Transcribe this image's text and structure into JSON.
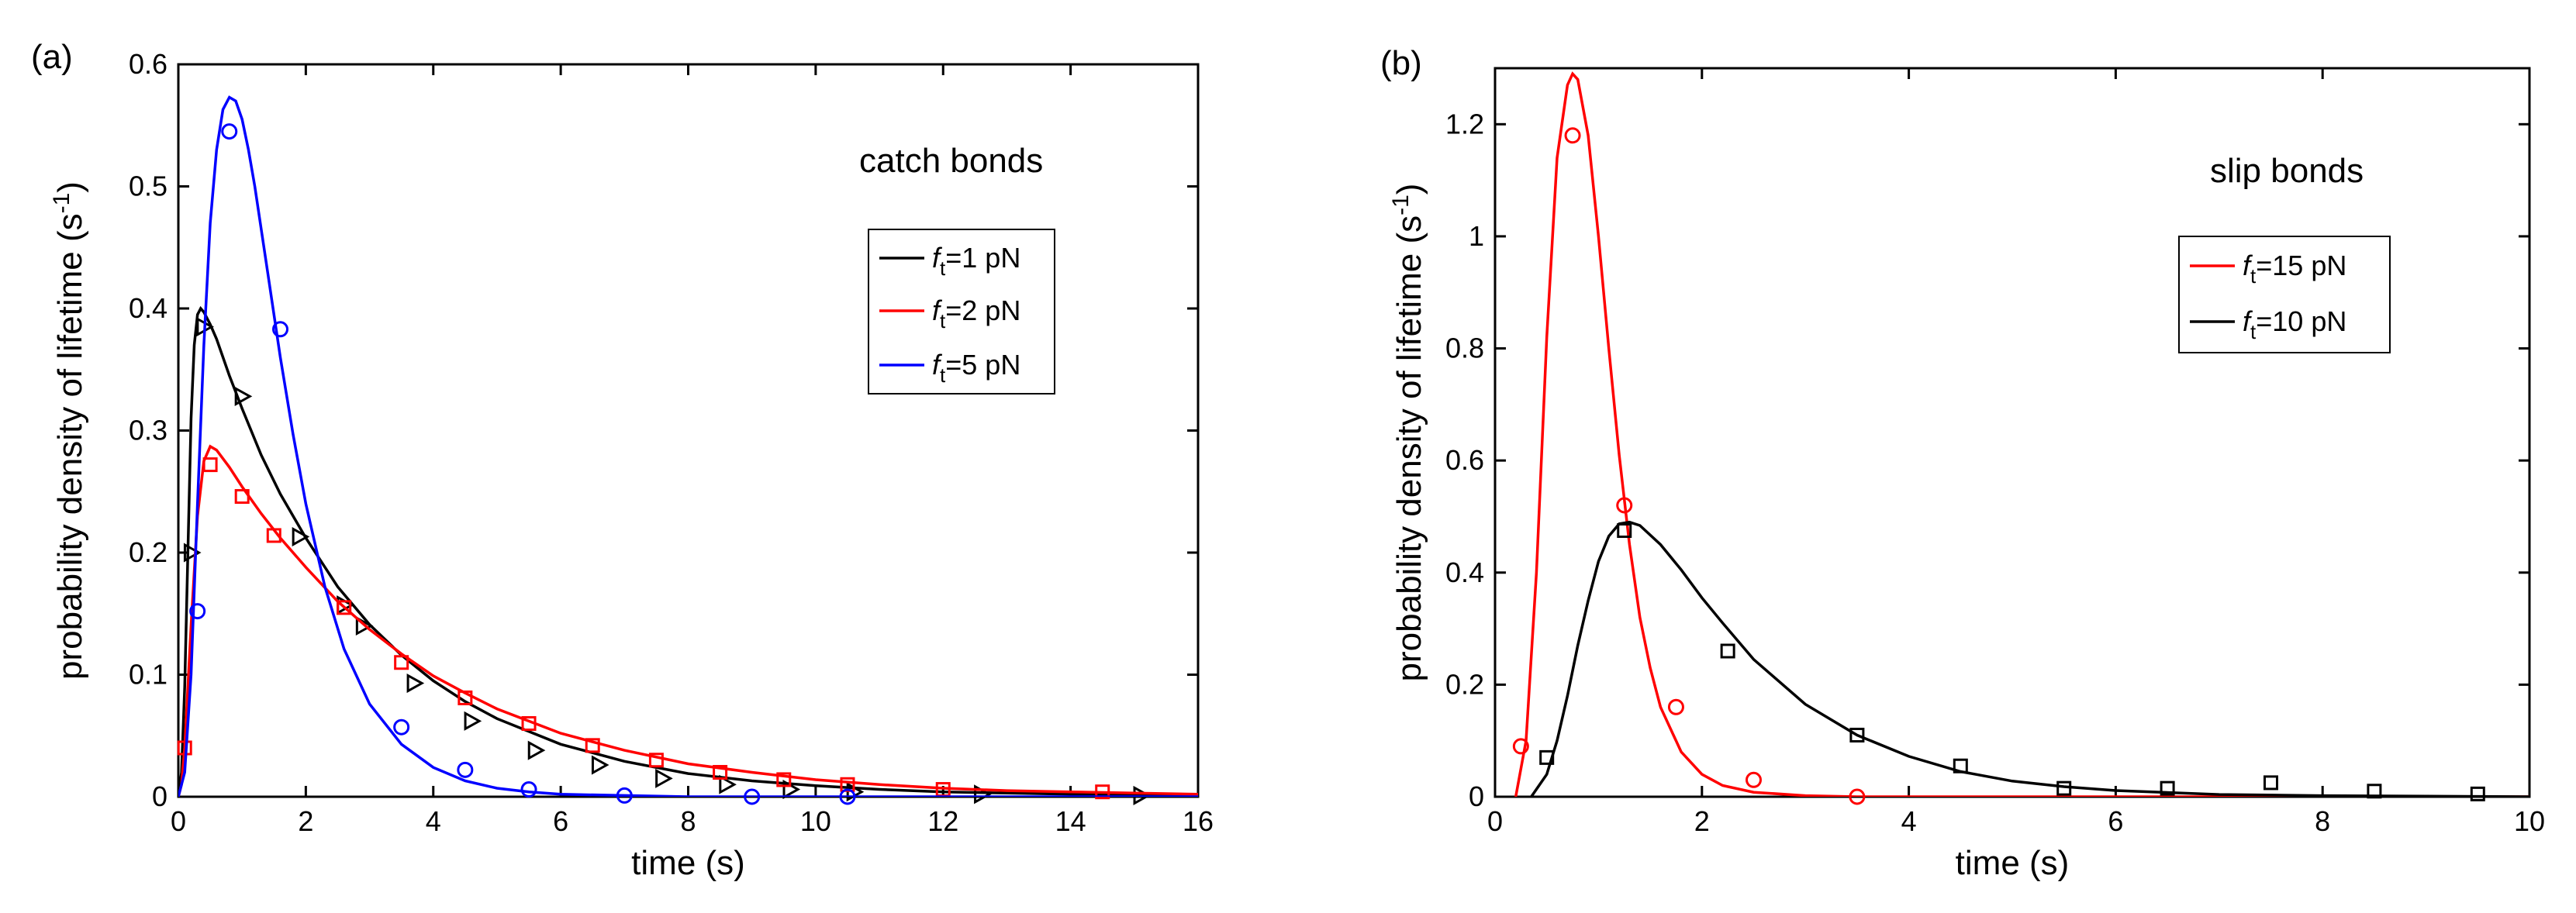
{
  "chart_data": [
    {
      "type": "line",
      "panel_label": "(a)",
      "annotation": "catch bonds",
      "xlabel": "time (s)",
      "ylabel": "probability density of lifetime (s",
      "ylabel_sup": "-1",
      "ylabel_close": ")",
      "xlim": [
        0,
        16
      ],
      "ylim": [
        0,
        0.6
      ],
      "xticks": [
        0,
        2,
        4,
        6,
        8,
        10,
        12,
        14,
        16
      ],
      "yticks": [
        0,
        0.1,
        0.2,
        0.3,
        0.4,
        0.5,
        0.6
      ],
      "xtick_labels": [
        "0",
        "2",
        "4",
        "6",
        "8",
        "10",
        "12",
        "14",
        "16"
      ],
      "ytick_labels": [
        "0",
        "0.1",
        "0.2",
        "0.3",
        "0.4",
        "0.5",
        "0.6"
      ],
      "legend_position": "upper-right",
      "series": [
        {
          "name": "f_t=1 pN",
          "legend_prefix": "f",
          "legend_sub": "t",
          "legend_suffix": "=1 pN",
          "color": "#000000",
          "marker": "triangle-right",
          "curve_x": [
            0,
            0.05,
            0.1,
            0.15,
            0.2,
            0.25,
            0.3,
            0.35,
            0.4,
            0.5,
            0.6,
            0.8,
            1.0,
            1.3,
            1.6,
            2.0,
            2.5,
            3.0,
            3.5,
            4.0,
            4.5,
            5.0,
            6.0,
            7.0,
            8.0,
            9.0,
            10,
            11,
            12,
            13,
            14,
            15,
            16
          ],
          "curve_y": [
            0,
            0.02,
            0.09,
            0.2,
            0.31,
            0.37,
            0.395,
            0.4,
            0.397,
            0.387,
            0.375,
            0.345,
            0.318,
            0.28,
            0.248,
            0.212,
            0.172,
            0.141,
            0.116,
            0.095,
            0.078,
            0.064,
            0.043,
            0.029,
            0.019,
            0.013,
            0.009,
            0.006,
            0.004,
            0.003,
            0.002,
            0.001,
            0.001
          ],
          "points_x": [
            0.2,
            0.4,
            1.0,
            1.9,
            2.6,
            2.9,
            3.7,
            4.6,
            5.6,
            6.6,
            7.6,
            8.6,
            9.6,
            10.6,
            12.6,
            15.1
          ],
          "points_y": [
            0.2,
            0.385,
            0.328,
            0.213,
            0.157,
            0.14,
            0.093,
            0.062,
            0.038,
            0.026,
            0.015,
            0.01,
            0.006,
            0.004,
            0.002,
            0.001
          ]
        },
        {
          "name": "f_t=2 pN",
          "legend_prefix": "f",
          "legend_sub": "t",
          "legend_suffix": "=2 pN",
          "color": "#ff0000",
          "marker": "square",
          "curve_x": [
            0,
            0.05,
            0.1,
            0.2,
            0.3,
            0.4,
            0.5,
            0.6,
            0.8,
            1.0,
            1.3,
            1.6,
            2.0,
            2.5,
            3.0,
            3.5,
            4.0,
            4.5,
            5.0,
            6.0,
            7.0,
            8.0,
            9.0,
            10,
            11,
            12,
            13,
            14,
            15,
            16
          ],
          "curve_y": [
            0,
            0.01,
            0.04,
            0.14,
            0.23,
            0.275,
            0.287,
            0.284,
            0.27,
            0.254,
            0.232,
            0.212,
            0.188,
            0.16,
            0.137,
            0.117,
            0.099,
            0.085,
            0.072,
            0.052,
            0.038,
            0.027,
            0.02,
            0.014,
            0.01,
            0.007,
            0.005,
            0.004,
            0.003,
            0.002
          ],
          "points_x": [
            0.1,
            0.5,
            1.0,
            1.5,
            2.6,
            3.5,
            4.5,
            5.5,
            6.5,
            7.5,
            8.5,
            9.5,
            10.5,
            12.0,
            14.5
          ],
          "points_y": [
            0.04,
            0.272,
            0.246,
            0.214,
            0.155,
            0.11,
            0.081,
            0.06,
            0.042,
            0.03,
            0.02,
            0.014,
            0.01,
            0.006,
            0.004
          ]
        },
        {
          "name": "f_t=5 pN",
          "legend_prefix": "f",
          "legend_sub": "t",
          "legend_suffix": "=5 pN",
          "color": "#0000ff",
          "marker": "circle",
          "curve_x": [
            0,
            0.1,
            0.2,
            0.3,
            0.4,
            0.5,
            0.6,
            0.7,
            0.8,
            0.9,
            1.0,
            1.1,
            1.2,
            1.4,
            1.6,
            1.8,
            2.0,
            2.3,
            2.6,
            3.0,
            3.5,
            4.0,
            4.5,
            5.0,
            5.5,
            6.0,
            7.0,
            8.0,
            9.0,
            10,
            16
          ],
          "curve_y": [
            0,
            0.02,
            0.1,
            0.24,
            0.37,
            0.47,
            0.53,
            0.563,
            0.573,
            0.57,
            0.555,
            0.53,
            0.5,
            0.43,
            0.36,
            0.297,
            0.24,
            0.172,
            0.121,
            0.076,
            0.043,
            0.024,
            0.013,
            0.007,
            0.004,
            0.002,
            0.001,
            0.0,
            0.0,
            0.0,
            0.0
          ],
          "points_x": [
            0.3,
            0.8,
            1.6,
            3.5,
            4.5,
            5.5,
            7.0,
            9.0,
            10.5
          ],
          "points_y": [
            0.152,
            0.545,
            0.383,
            0.057,
            0.022,
            0.006,
            0.001,
            0.0,
            0.0
          ]
        }
      ]
    },
    {
      "type": "line",
      "panel_label": "(b)",
      "annotation": "slip bonds",
      "xlabel": "time (s)",
      "ylabel": "probability density of lifetime (s",
      "ylabel_sup": "-1",
      "ylabel_close": ")",
      "xlim": [
        0,
        10
      ],
      "ylim": [
        0,
        1.3
      ],
      "xticks": [
        0,
        2,
        4,
        6,
        8,
        10
      ],
      "yticks": [
        0,
        0.2,
        0.4,
        0.6,
        0.8,
        1,
        1.2
      ],
      "xtick_labels": [
        "0",
        "2",
        "4",
        "6",
        "8",
        "10"
      ],
      "ytick_labels": [
        "0",
        "0.2",
        "0.4",
        "0.6",
        "0.8",
        "1",
        "1.2"
      ],
      "legend_position": "upper-right",
      "series": [
        {
          "name": "f_t=15 pN",
          "legend_prefix": "f",
          "legend_sub": "t",
          "legend_suffix": "=15 pN",
          "color": "#ff0000",
          "marker": "circle",
          "curve_x": [
            0.2,
            0.3,
            0.4,
            0.5,
            0.6,
            0.7,
            0.75,
            0.8,
            0.9,
            1.0,
            1.1,
            1.2,
            1.3,
            1.4,
            1.5,
            1.6,
            1.8,
            2.0,
            2.2,
            2.5,
            3.0,
            3.5,
            4.0,
            5.0,
            10
          ],
          "curve_y": [
            0.0,
            0.1,
            0.4,
            0.82,
            1.14,
            1.27,
            1.29,
            1.28,
            1.18,
            1.0,
            0.8,
            0.61,
            0.45,
            0.32,
            0.23,
            0.16,
            0.08,
            0.04,
            0.02,
            0.008,
            0.002,
            0.0,
            0.0,
            0.0,
            0.0
          ],
          "points_x": [
            0.25,
            0.75,
            1.25,
            1.75,
            2.5,
            3.5
          ],
          "points_y": [
            0.09,
            1.18,
            0.52,
            0.16,
            0.03,
            0.0
          ]
        },
        {
          "name": "f_t=10 pN",
          "legend_prefix": "f",
          "legend_sub": "t",
          "legend_suffix": "=10 pN",
          "color": "#000000",
          "marker": "square",
          "curve_x": [
            0.35,
            0.5,
            0.6,
            0.7,
            0.8,
            0.9,
            1.0,
            1.1,
            1.2,
            1.3,
            1.4,
            1.6,
            1.8,
            2.0,
            2.2,
            2.5,
            3.0,
            3.5,
            4.0,
            4.5,
            5.0,
            5.5,
            6.0,
            7.0,
            8.0,
            9.0,
            10
          ],
          "curve_y": [
            0.0,
            0.04,
            0.1,
            0.18,
            0.27,
            0.35,
            0.42,
            0.465,
            0.487,
            0.49,
            0.484,
            0.45,
            0.405,
            0.355,
            0.31,
            0.245,
            0.165,
            0.11,
            0.072,
            0.045,
            0.028,
            0.018,
            0.011,
            0.004,
            0.002,
            0.001,
            0.0
          ],
          "points_x": [
            0.5,
            1.25,
            2.25,
            3.5,
            4.5,
            5.5,
            6.5,
            7.5,
            8.5,
            9.5
          ],
          "points_y": [
            0.07,
            0.475,
            0.26,
            0.11,
            0.055,
            0.015,
            0.015,
            0.025,
            0.01,
            0.005
          ]
        }
      ]
    }
  ]
}
